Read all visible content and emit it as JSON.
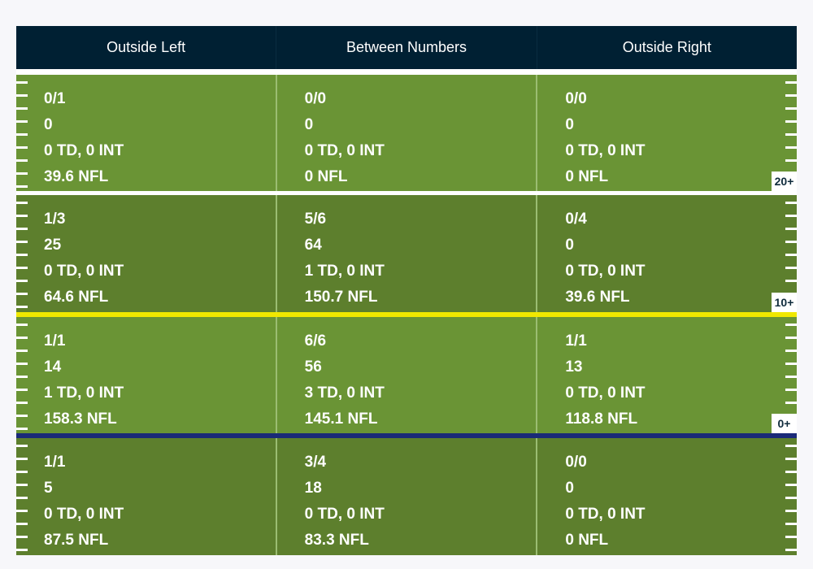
{
  "columns": [
    "Outside Left",
    "Between Numbers",
    "Outside Right"
  ],
  "zones": [
    {
      "badge": "20+",
      "cells": [
        {
          "completions": "0/1",
          "yards": "0",
          "td_int": "0 TD, 0 INT",
          "rating": "39.6 NFL"
        },
        {
          "completions": "0/0",
          "yards": "0",
          "td_int": "0 TD, 0 INT",
          "rating": "0 NFL"
        },
        {
          "completions": "0/0",
          "yards": "0",
          "td_int": "0 TD, 0 INT",
          "rating": "0 NFL"
        }
      ]
    },
    {
      "badge": "10+",
      "cells": [
        {
          "completions": "1/3",
          "yards": "25",
          "td_int": "0 TD, 0 INT",
          "rating": "64.6 NFL"
        },
        {
          "completions": "5/6",
          "yards": "64",
          "td_int": "1 TD, 0 INT",
          "rating": "150.7 NFL"
        },
        {
          "completions": "0/4",
          "yards": "0",
          "td_int": "0 TD, 0 INT",
          "rating": "39.6 NFL"
        }
      ]
    },
    {
      "badge": "0+",
      "cells": [
        {
          "completions": "1/1",
          "yards": "14",
          "td_int": "1 TD, 0 INT",
          "rating": "158.3 NFL"
        },
        {
          "completions": "6/6",
          "yards": "56",
          "td_int": "3 TD, 0 INT",
          "rating": "145.1 NFL"
        },
        {
          "completions": "1/1",
          "yards": "13",
          "td_int": "0 TD, 0 INT",
          "rating": "118.8 NFL"
        }
      ]
    },
    {
      "badge": "",
      "cells": [
        {
          "completions": "1/1",
          "yards": "5",
          "td_int": "0 TD, 0 INT",
          "rating": "87.5 NFL"
        },
        {
          "completions": "3/4",
          "yards": "18",
          "td_int": "0 TD, 0 INT",
          "rating": "83.3 NFL"
        },
        {
          "completions": "0/0",
          "yards": "0",
          "td_int": "0 TD, 0 INT",
          "rating": "0 NFL"
        }
      ]
    }
  ],
  "colors": {
    "header_bg": "#002033",
    "field_light": "#6a9435",
    "field_dark": "#5d7f2d",
    "line_of_scrimmage": "#1a2a78",
    "first_down_line": "#f0e800",
    "yard_line": "#ffffff"
  }
}
